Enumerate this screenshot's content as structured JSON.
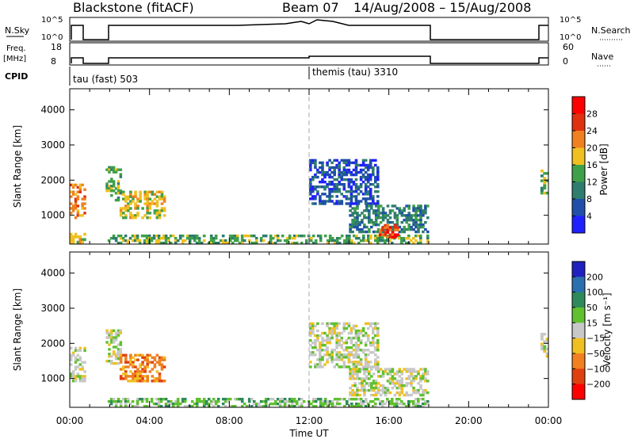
{
  "header": {
    "site": "Blackstone (fitACF)",
    "beam": "Beam 07",
    "date_range": "14/Aug/2008 – 15/Aug/2008"
  },
  "summary_panels": {
    "nsky_label": "N.Sky",
    "nsky_ticks": [
      "10^5",
      "10^0"
    ],
    "nsearch_label": "N.Search",
    "nsearch_ticks": [
      "10^5",
      "10^0"
    ],
    "freq_label_1": "Freq.",
    "freq_label_2": "[MHz]",
    "freq_ticks": [
      "18",
      "8"
    ],
    "nave_label": "Nave",
    "nave_ticks": [
      "60",
      "0"
    ],
    "cpid_label": "CPID",
    "cpid_segments": [
      {
        "label": "tau (fast) 503",
        "start_hour": 0
      },
      {
        "label": "themis (tau) 3310",
        "start_hour": 12
      }
    ]
  },
  "chart_data": [
    {
      "type": "heatmap",
      "name": "power",
      "ylabel": "Slant Range [km]",
      "xlabel": "Time UT",
      "ylim": [
        180,
        4600
      ],
      "xlim_hours": [
        0,
        24
      ],
      "yticks": [
        "1000",
        "2000",
        "3000",
        "4000"
      ],
      "xticks": [
        "00:00",
        "04:00",
        "08:00",
        "12:00",
        "16:00",
        "20:00",
        "00:00"
      ],
      "colorbar_label": "Power [dB]",
      "colorbar_ticks": [
        "4",
        "8",
        "12",
        "16",
        "20",
        "24",
        "28"
      ],
      "colorbar_colors": [
        "#2020ff",
        "#1f4fa8",
        "#2e7d6e",
        "#3fa04a",
        "#f0c020",
        "#f08020",
        "#e03010",
        "#ff0000"
      ],
      "regions": [
        {
          "t0": 0.0,
          "t1": 0.8,
          "r0": 900,
          "r1": 1900,
          "level": 5
        },
        {
          "t0": 0.0,
          "t1": 0.8,
          "r0": 200,
          "r1": 500,
          "level": 4
        },
        {
          "t0": 1.8,
          "t1": 2.6,
          "r0": 1400,
          "r1": 2400,
          "level": 3
        },
        {
          "t0": 2.5,
          "t1": 4.8,
          "r0": 900,
          "r1": 1700,
          "level": 4
        },
        {
          "t0": 1.9,
          "t1": 18.0,
          "r0": 180,
          "r1": 450,
          "level": 3
        },
        {
          "t0": 12.0,
          "t1": 15.5,
          "r0": 1300,
          "r1": 2600,
          "level": 1
        },
        {
          "t0": 14.0,
          "t1": 18.0,
          "r0": 500,
          "r1": 1300,
          "level": 2
        },
        {
          "t0": 15.5,
          "t1": 16.5,
          "r0": 350,
          "r1": 750,
          "level": 6
        },
        {
          "t0": 23.6,
          "t1": 24.0,
          "r0": 1600,
          "r1": 2300,
          "level": 3
        }
      ]
    },
    {
      "type": "heatmap",
      "name": "velocity",
      "ylabel": "Slant Range [km]",
      "xlabel": "Time UT",
      "ylim": [
        180,
        4600
      ],
      "xlim_hours": [
        0,
        24
      ],
      "yticks": [
        "1000",
        "2000",
        "3000",
        "4000"
      ],
      "xticks": [
        "00:00",
        "04:00",
        "08:00",
        "12:00",
        "16:00",
        "20:00",
        "00:00"
      ],
      "colorbar_label": "Velocity [m s⁻¹]",
      "colorbar_ticks": [
        "200",
        "100",
        "50",
        "15",
        "−15",
        "−50",
        "−100",
        "−200"
      ],
      "colorbar_colors": [
        "#2020c0",
        "#2a6fb0",
        "#2e8a5a",
        "#60c030",
        "#c8c8c8",
        "#f0c020",
        "#f08020",
        "#e04010",
        "#ff0000"
      ],
      "regions": [
        {
          "t0": 0.0,
          "t1": 0.8,
          "r0": 900,
          "r1": 1900,
          "level": 4
        },
        {
          "t0": 1.8,
          "t1": 2.6,
          "r0": 1400,
          "r1": 2400,
          "level": 4
        },
        {
          "t0": 2.5,
          "t1": 4.8,
          "r0": 900,
          "r1": 1700,
          "level": 6
        },
        {
          "t0": 1.9,
          "t1": 18.0,
          "r0": 180,
          "r1": 450,
          "level": 3
        },
        {
          "t0": 12.0,
          "t1": 15.5,
          "r0": 1300,
          "r1": 2600,
          "level": 4
        },
        {
          "t0": 14.0,
          "t1": 18.0,
          "r0": 500,
          "r1": 1300,
          "level": 4
        },
        {
          "t0": 23.6,
          "t1": 24.0,
          "r0": 1600,
          "r1": 2300,
          "level": 4
        }
      ]
    }
  ]
}
